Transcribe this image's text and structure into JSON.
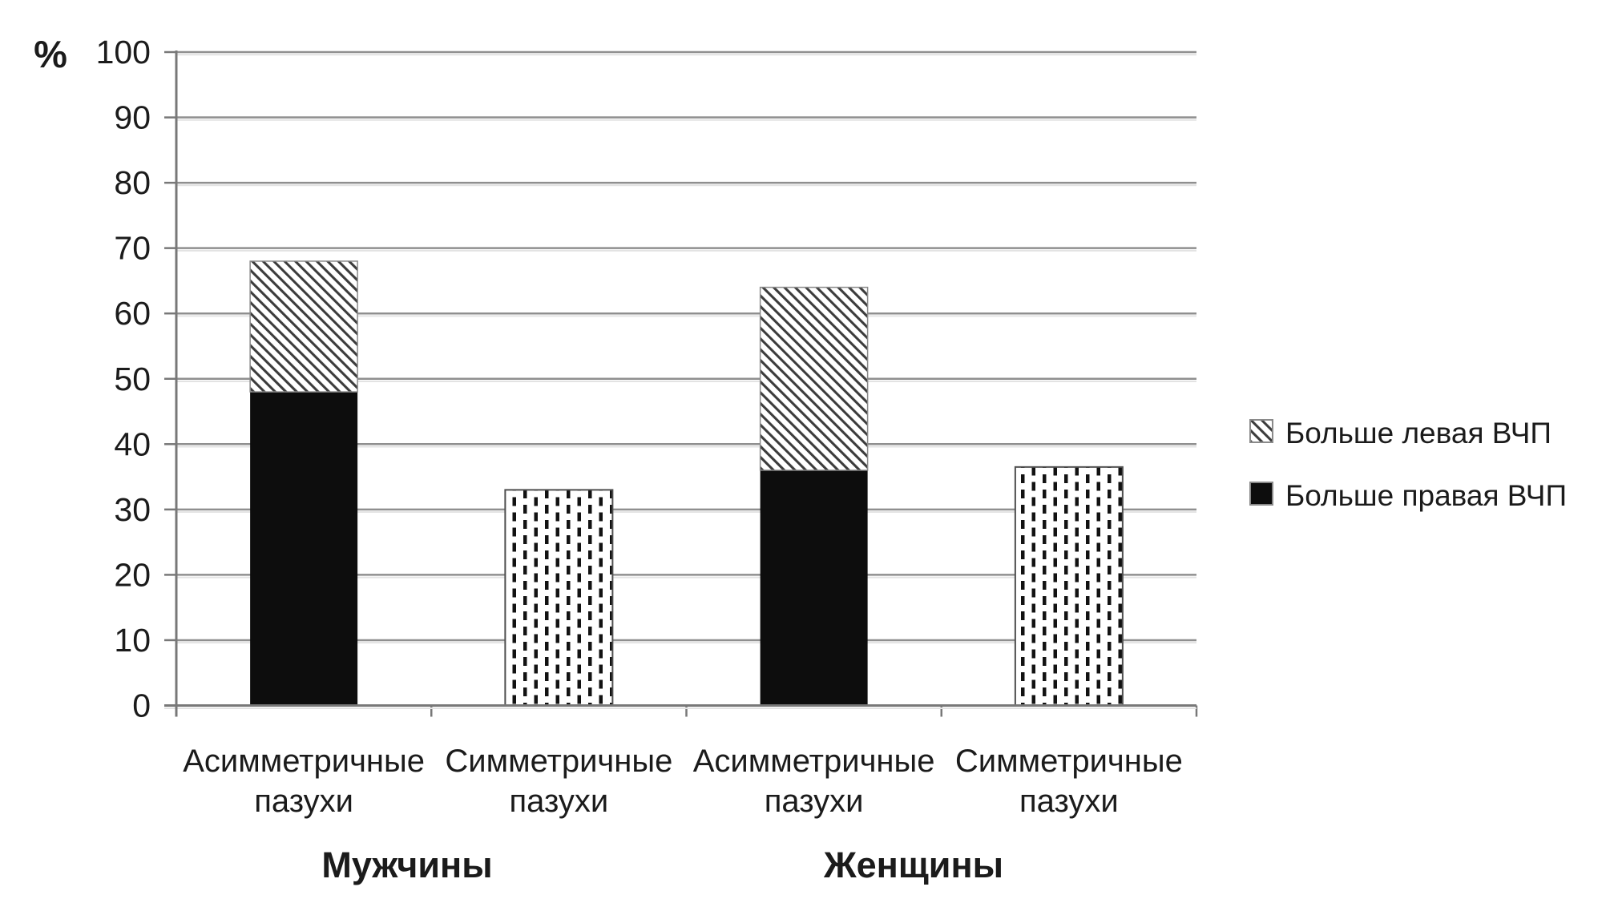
{
  "chart_data": {
    "type": "bar",
    "stacked": true,
    "title": "",
    "ylabel": "%",
    "ylim": [
      0,
      100
    ],
    "ytick_step": 10,
    "grid": true,
    "legend_position": "right",
    "yticks": {
      "values": [
        0,
        10,
        20,
        30,
        40,
        50,
        60,
        70,
        80,
        90,
        100
      ],
      "labels": [
        "0",
        "10",
        "20",
        "30",
        "40",
        "50",
        "60",
        "70",
        "80",
        "90",
        "100"
      ]
    },
    "groups": [
      "Мужчины",
      "Женщины"
    ],
    "legend": [
      {
        "label": "Больше левая ВЧП",
        "pattern": "diagonal-hatch"
      },
      {
        "label": "Больше правая ВЧП",
        "pattern": "solid-black"
      }
    ],
    "bars": [
      {
        "group": "Мужчины",
        "category": "Асимметричные пазухи",
        "category_lines": [
          "Асимметричные",
          "пазухи"
        ],
        "total": 68,
        "segments": [
          {
            "series": "Больше правая ВЧП",
            "value": 48,
            "pattern": "solid-black"
          },
          {
            "series": "Больше левая ВЧП",
            "value": 20,
            "pattern": "diagonal-hatch"
          }
        ]
      },
      {
        "group": "Мужчины",
        "category": "Симметричные пазухи",
        "category_lines": [
          "Симметричные",
          "пазухи"
        ],
        "total": 33,
        "segments": [
          {
            "series": "Симметричные пазухи",
            "value": 33,
            "pattern": "vertical-dash"
          }
        ]
      },
      {
        "group": "Женщины",
        "category": "Асимметричные пазухи",
        "category_lines": [
          "Асимметричные",
          "пазухи"
        ],
        "total": 64,
        "segments": [
          {
            "series": "Больше правая ВЧП",
            "value": 36,
            "pattern": "solid-black"
          },
          {
            "series": "Больше левая ВЧП",
            "value": 28,
            "pattern": "diagonal-hatch"
          }
        ]
      },
      {
        "group": "Женщины",
        "category": "Симметричные пазухи",
        "category_lines": [
          "Симметричные",
          "пазухи"
        ],
        "total": 36.5,
        "segments": [
          {
            "series": "Симметричные пазухи",
            "value": 36.5,
            "pattern": "vertical-dash"
          }
        ]
      }
    ],
    "colors": {
      "background": "#ffffff",
      "text": "#1b1b1b",
      "grid": "#8f8f8f",
      "grid_shadow": "#e3e3e3",
      "axis": "#787878",
      "solid_black": "#0d0d0d",
      "hatch_stroke": "#3c3c3c",
      "dash_fill": "#121212",
      "pattern_bg": "#ffffff",
      "segment_border": "#8a8a8a",
      "dash_border": "#4f4f4f"
    }
  }
}
